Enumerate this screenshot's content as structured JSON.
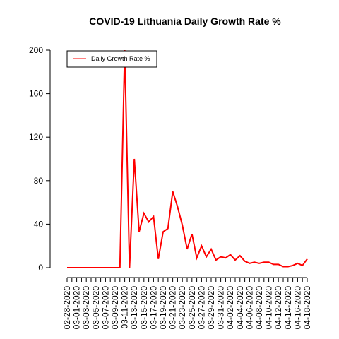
{
  "chart_data": {
    "type": "line",
    "title": "COVID-19 Lithuania Daily Growth Rate %",
    "categories": [
      "02-28-2020",
      null,
      "03-01-2020",
      null,
      "03-03-2020",
      null,
      "03-05-2020",
      null,
      "03-07-2020",
      null,
      "03-09-2020",
      null,
      "03-11-2020",
      null,
      "03-13-2020",
      null,
      "03-15-2020",
      null,
      "03-17-2020",
      null,
      "03-19-2020",
      null,
      "03-21-2020",
      null,
      "03-23-2020",
      null,
      "03-25-2020",
      null,
      "03-27-2020",
      null,
      "03-29-2020",
      null,
      "03-31-2020",
      null,
      "04-02-2020",
      null,
      "04-04-2020",
      null,
      "04-06-2020",
      null,
      "04-08-2020",
      null,
      "04-10-2020",
      null,
      "04-12-2020",
      null,
      "04-14-2020",
      null,
      "04-16-2020",
      null,
      "04-18-2020"
    ],
    "series": [
      {
        "name": "Daily Growth Rate %",
        "color": "#ff0000",
        "values": [
          0,
          0,
          0,
          0,
          0,
          0,
          0,
          0,
          0,
          0,
          0,
          0,
          200,
          0,
          100,
          33,
          50,
          42,
          47,
          8,
          33,
          36,
          70,
          56,
          39,
          17,
          31,
          9,
          20,
          10,
          17,
          7,
          10,
          9,
          12,
          7,
          11,
          6,
          4,
          5,
          4,
          5,
          5,
          3,
          3,
          1,
          1,
          2,
          4,
          2,
          8
        ]
      }
    ],
    "ylim": [
      0,
      200
    ],
    "yticks": [
      0,
      40,
      80,
      120,
      160,
      200
    ],
    "legend": "top-left"
  }
}
